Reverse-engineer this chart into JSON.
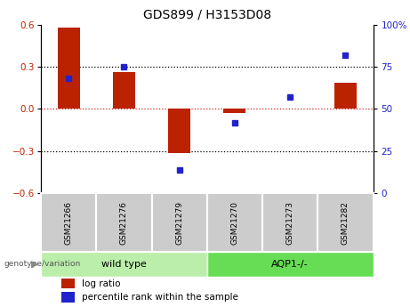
{
  "title": "GDS899 / H3153D08",
  "samples": [
    "GSM21266",
    "GSM21276",
    "GSM21279",
    "GSM21270",
    "GSM21273",
    "GSM21282"
  ],
  "log_ratio": [
    0.58,
    0.265,
    -0.315,
    -0.03,
    0.0,
    0.185
  ],
  "percentile_rank": [
    68,
    75,
    14,
    42,
    57,
    82
  ],
  "ylim_left": [
    -0.6,
    0.6
  ],
  "ylim_right": [
    0,
    100
  ],
  "yticks_left": [
    -0.6,
    -0.3,
    0.0,
    0.3,
    0.6
  ],
  "yticks_right": [
    0,
    25,
    50,
    75,
    100
  ],
  "bar_color": "#bb2200",
  "dot_color": "#2222cc",
  "zero_line_color": "#cc2222",
  "wild_type_indices": [
    0,
    1,
    2
  ],
  "aqp1_indices": [
    3,
    4,
    5
  ],
  "wild_type_label": "wild type",
  "aqp1_label": "AQP1-/-",
  "genotype_label": "genotype/variation",
  "legend_log_ratio": "log ratio",
  "legend_percentile": "percentile rank within the sample",
  "group_box_color_wt": "#bbeeaa",
  "group_box_color_aqp": "#66dd55",
  "tick_label_bg": "#cccccc",
  "bar_width": 0.4
}
